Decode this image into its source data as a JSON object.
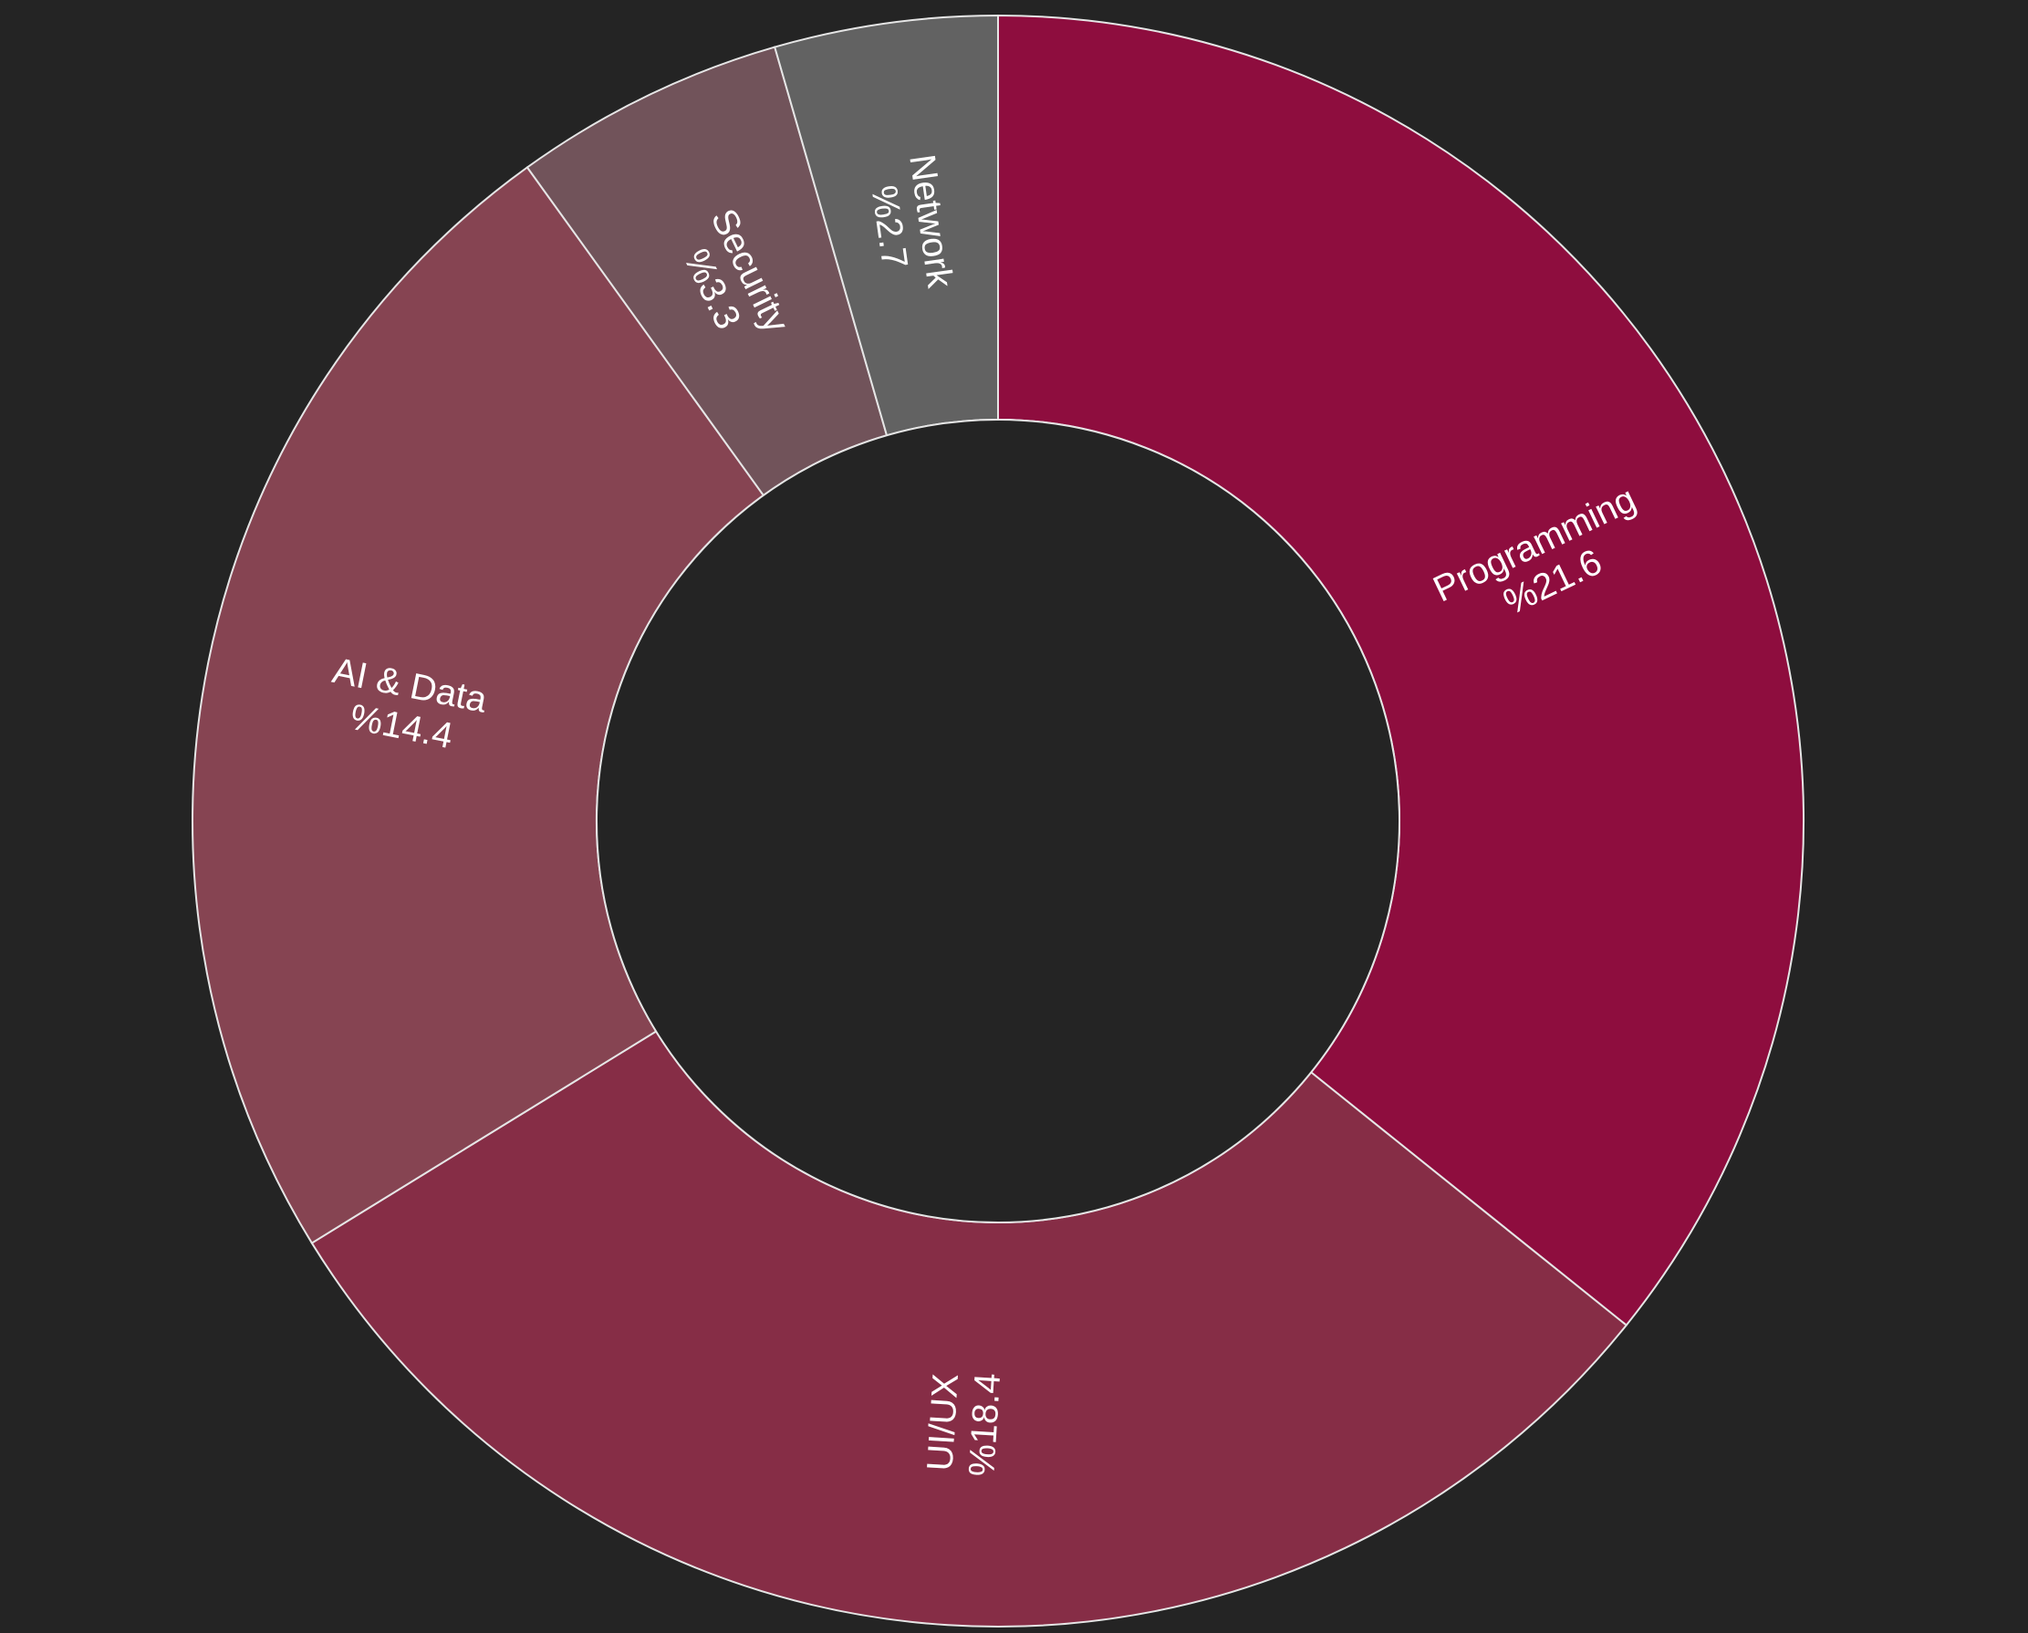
{
  "page": {
    "background": "#242424"
  },
  "chart_data": {
    "type": "pie",
    "donut": true,
    "start_direction": "top",
    "clockwise": true,
    "slice_border_color": "#e6e6e6",
    "label_color": "#ffffff",
    "slices": [
      {
        "label": "Programming",
        "value_label": "%21.6",
        "value": 21.6,
        "color": "#8e0d3e"
      },
      {
        "label": "UI/UX",
        "value_label": "%18.4",
        "value": 18.4,
        "color": "#862d46"
      },
      {
        "label": "AI & Data",
        "value_label": "%14.4",
        "value": 14.4,
        "color": "#864452"
      },
      {
        "label": "Security",
        "value_label": "%3.3",
        "value": 3.3,
        "color": "#71535a"
      },
      {
        "label": "Network",
        "value_label": "%2.7",
        "value": 2.7,
        "color": "#626262"
      }
    ]
  }
}
